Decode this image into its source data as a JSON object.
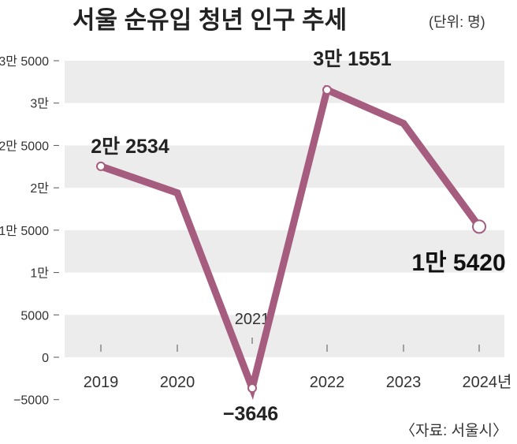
{
  "chart_data": {
    "type": "line",
    "title": "서울 순유입 청년 인구 추세",
    "unit_label": "(단위: 명)",
    "source": "〈자료: 서울시〉",
    "x": [
      "2019",
      "2020",
      "2021",
      "2022",
      "2023",
      "2024년"
    ],
    "values": [
      22534,
      19400,
      -3646,
      31551,
      27600,
      15420
    ],
    "data_labels": [
      {
        "index": 0,
        "text": "2만 2534"
      },
      {
        "index": 2,
        "text": "−3646"
      },
      {
        "index": 3,
        "text": "3만 1551"
      },
      {
        "index": 5,
        "text": "1만 5420"
      }
    ],
    "ylim": [
      -5000,
      35000
    ],
    "yticks": [
      {
        "value": 35000,
        "label": "3만 5000"
      },
      {
        "value": 30000,
        "label": "3만"
      },
      {
        "value": 25000,
        "label": "2만 5000"
      },
      {
        "value": 20000,
        "label": "2만"
      },
      {
        "value": 15000,
        "label": "1만 5000"
      },
      {
        "value": 10000,
        "label": "1만"
      },
      {
        "value": 5000,
        "label": "5000"
      },
      {
        "value": 0,
        "label": "0"
      },
      {
        "value": -5000,
        "label": "−5000"
      }
    ],
    "line_color": "#a55c7f",
    "band_color": "#ececec",
    "grid": "alternating bands"
  }
}
